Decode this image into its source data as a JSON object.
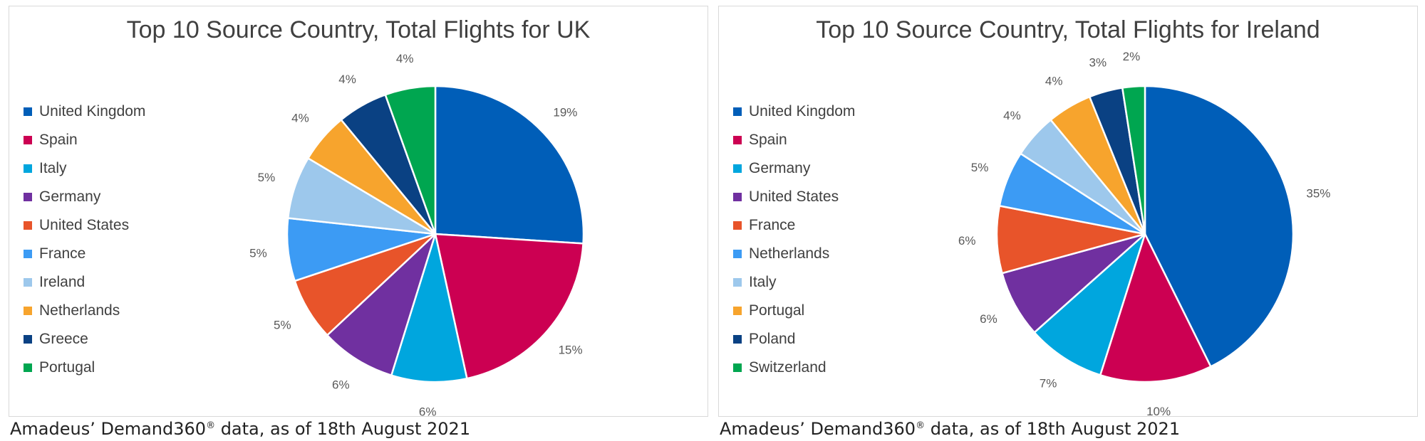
{
  "chart_data": [
    {
      "type": "pie",
      "title": "Top 10 Source Country, Total Flights for UK",
      "legend_position": "left",
      "categories": [
        "United Kingdom",
        "Spain",
        "Italy",
        "Germany",
        "United States",
        "France",
        "Ireland",
        "Netherlands",
        "Greece",
        "Portugal"
      ],
      "values": [
        19,
        15,
        6,
        6,
        5,
        5,
        5,
        4,
        4,
        4
      ],
      "labels": [
        "19%",
        "15%",
        "6%",
        "6%",
        "5%",
        "5%",
        "5%",
        "4%",
        "4%",
        "4%"
      ],
      "colors": [
        "#005EB8",
        "#CC0052",
        "#00A6DE",
        "#7030A0",
        "#E8542A",
        "#3C9BF4",
        "#9DC8EC",
        "#F7A42D",
        "#0A4183",
        "#00A650"
      ]
    },
    {
      "type": "pie",
      "title": "Top 10 Source Country, Total Flights for Ireland",
      "legend_position": "left",
      "categories": [
        "United Kingdom",
        "Spain",
        "Germany",
        "United States",
        "France",
        "Netherlands",
        "Italy",
        "Portugal",
        "Poland",
        "Switzerland"
      ],
      "values": [
        35,
        10,
        7,
        6,
        6,
        5,
        4,
        4,
        3,
        2
      ],
      "labels": [
        "35%",
        "10%",
        "7%",
        "6%",
        "6%",
        "5%",
        "4%",
        "4%",
        "3%",
        "2%"
      ],
      "colors": [
        "#005EB8",
        "#CC0052",
        "#00A6DE",
        "#7030A0",
        "#E8542A",
        "#3C9BF4",
        "#9DC8EC",
        "#F7A42D",
        "#0A4183",
        "#00A650"
      ]
    }
  ],
  "captions": [
    {
      "before": "Amadeus’ Demand360",
      "mark": "®",
      "after": " data, as of 18th August 2021"
    },
    {
      "before": "Amadeus’ Demand360",
      "mark": "®",
      "after": " data, as of 18th August 2021"
    }
  ]
}
